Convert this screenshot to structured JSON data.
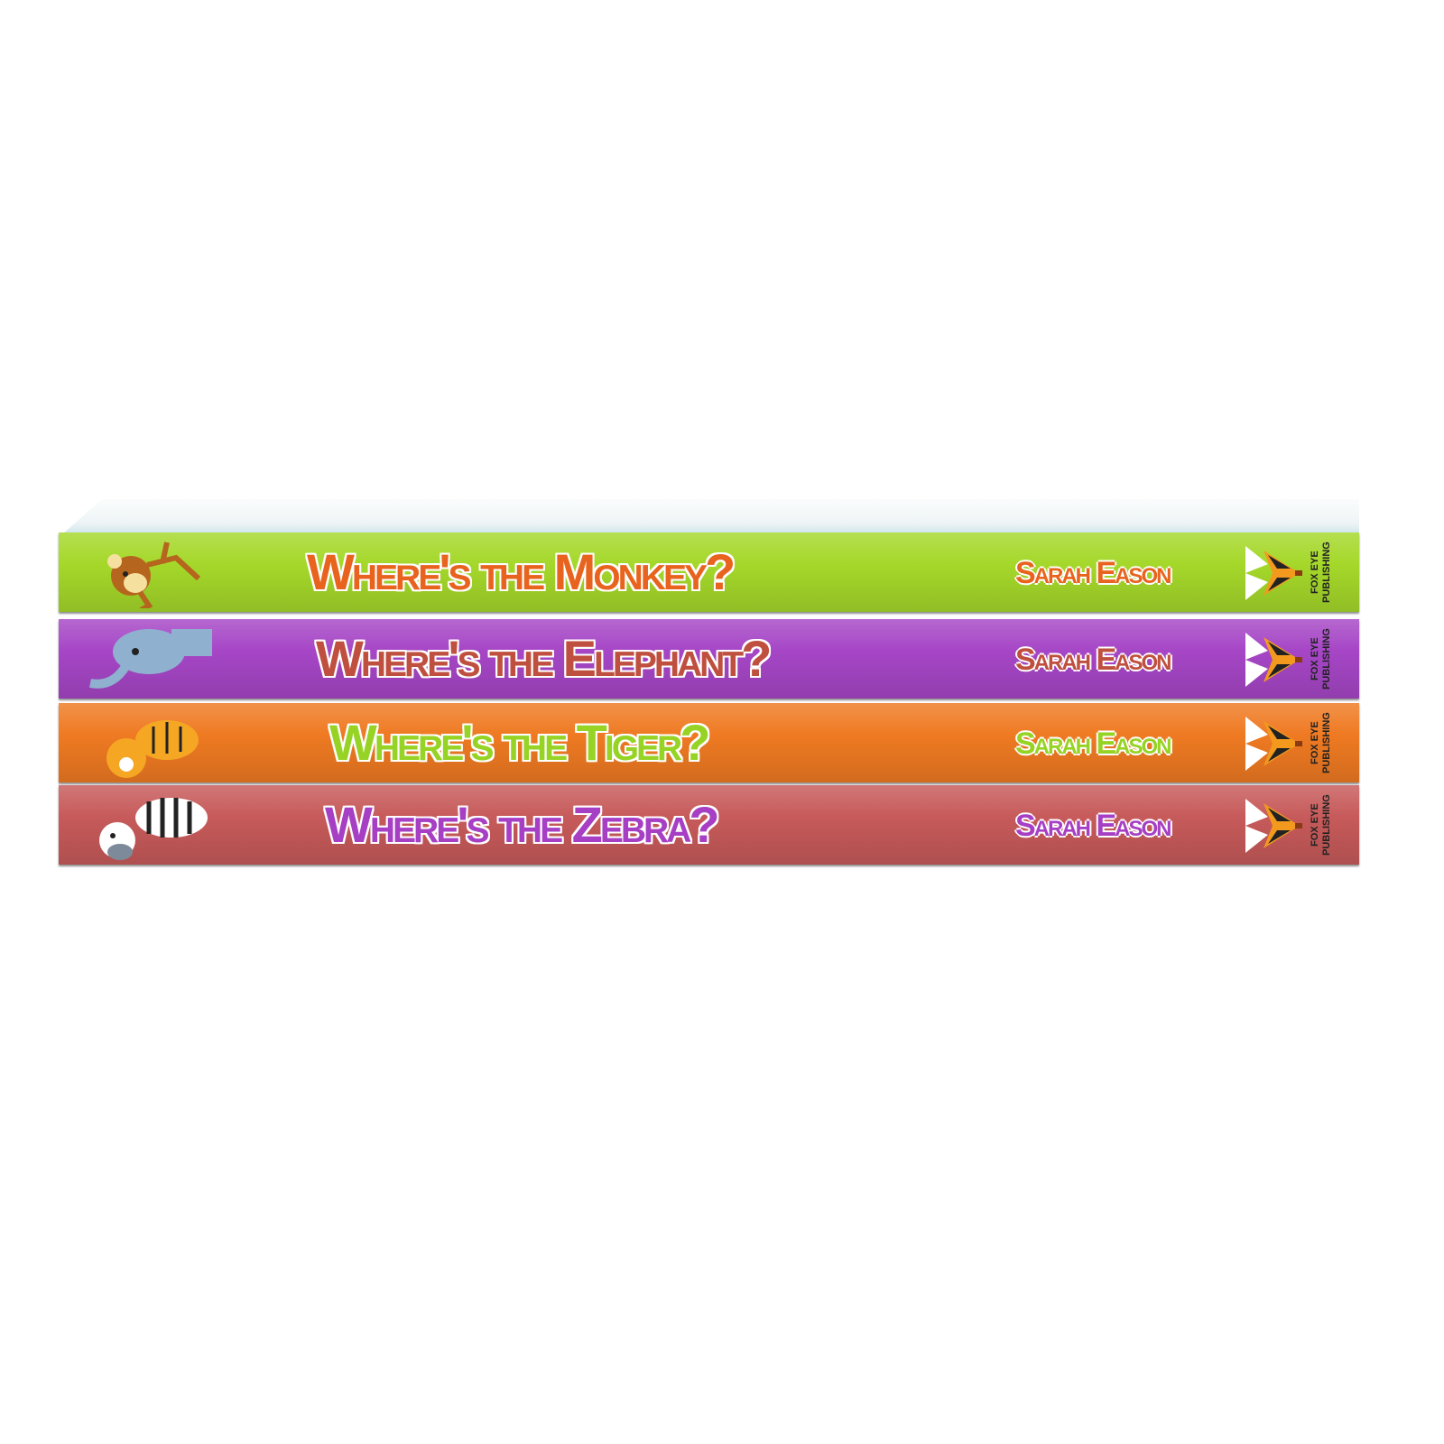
{
  "colors": {
    "background": "#ffffff"
  },
  "books": [
    {
      "title": "Where's the Monkey?",
      "author": "Sarah Eason",
      "publisher": "FOX EYE PUBLISHING",
      "animal": "monkey-illustration",
      "spine_color": "#a5d82a",
      "title_color": "#e8641e",
      "author_color": "#e8641e"
    },
    {
      "title": "Where's the Elephant?",
      "author": "Sarah Eason",
      "publisher": "FOX EYE PUBLISHING",
      "animal": "elephant-illustration",
      "spine_color": "#a646c6",
      "title_color": "#bf4f3e",
      "author_color": "#bf4f3e"
    },
    {
      "title": "Where's the Tiger?",
      "author": "Sarah Eason",
      "publisher": "FOX EYE PUBLISHING",
      "animal": "tiger-illustration",
      "spine_color": "#ef7a22",
      "title_color": "#96d325",
      "author_color": "#96d325"
    },
    {
      "title": "Where's the Zebra?",
      "author": "Sarah Eason",
      "publisher": "FOX EYE PUBLISHING",
      "animal": "zebra-illustration",
      "spine_color": "#c75a5a",
      "title_color": "#a63fc4",
      "author_color": "#a63fc4"
    }
  ]
}
